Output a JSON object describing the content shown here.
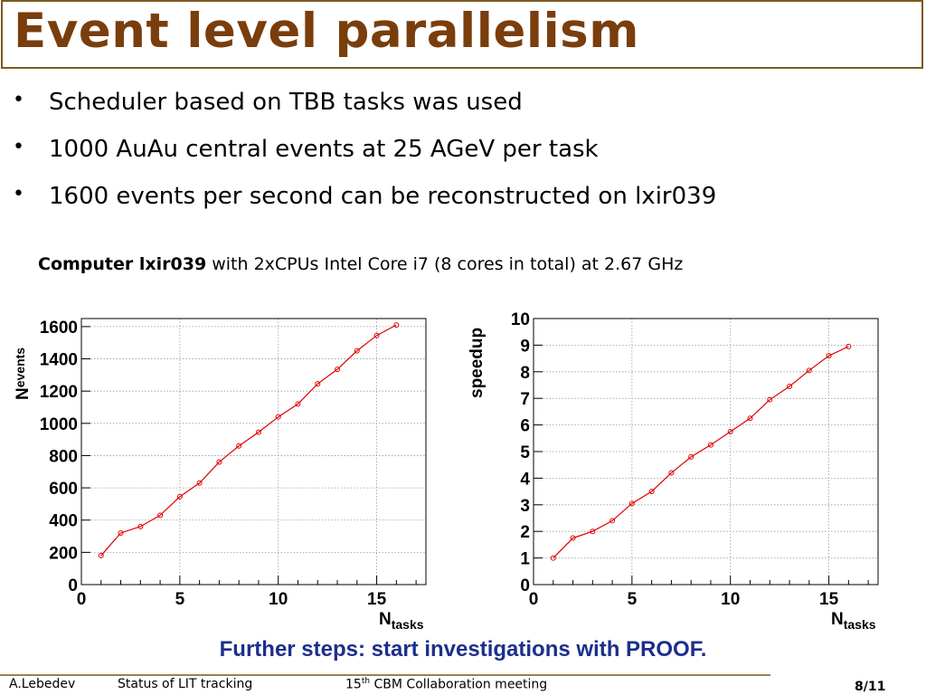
{
  "title": "Event level parallelism",
  "bullets": [
    "Scheduler based on TBB tasks was used",
    "1000 AuAu central events at 25 AGeV per task",
    "1600 events per second can be reconstructed on lxir039"
  ],
  "bullet_symbol": "•",
  "computer_bold": "Computer lxir039",
  "computer_rest": " with 2xCPUs Intel Core i7 (8 cores in total) at 2.67 GHz",
  "further": "Further steps: start investigations with PROOF.",
  "footer": {
    "author": "A.Lebedev",
    "talk": "Status of LIT tracking",
    "meeting_num": "15",
    "meeting_sup": "th",
    "meeting_rest": " CBM Collaboration meeting",
    "page": "8/11"
  },
  "colors": {
    "title": "#7a3d0c",
    "further": "#1c2f8c",
    "series": "#e00000",
    "grid": "#9a9a9a"
  },
  "chart_data": [
    {
      "type": "line",
      "ylabel": "N",
      "ylabel_sub": "events",
      "xlabel": "N",
      "xlabel_sub": "tasks",
      "xlim": [
        0,
        17.5
      ],
      "ylim": [
        0,
        1650
      ],
      "xticks": [
        0,
        5,
        10,
        15
      ],
      "yticks": [
        0,
        200,
        400,
        600,
        800,
        1000,
        1200,
        1400,
        1600
      ],
      "grid": true,
      "x": [
        1,
        2,
        3,
        4,
        5,
        6,
        7,
        8,
        9,
        10,
        11,
        12,
        13,
        14,
        15,
        16
      ],
      "values": [
        180,
        320,
        360,
        430,
        545,
        630,
        760,
        860,
        945,
        1040,
        1120,
        1245,
        1335,
        1450,
        1545,
        1610
      ]
    },
    {
      "type": "line",
      "ylabel": "speedup",
      "ylabel_sub": "",
      "xlabel": "N",
      "xlabel_sub": "tasks",
      "xlim": [
        0,
        17.5
      ],
      "ylim": [
        0,
        10
      ],
      "xticks": [
        0,
        5,
        10,
        15
      ],
      "yticks": [
        0,
        1,
        2,
        3,
        4,
        5,
        6,
        7,
        8,
        9,
        10
      ],
      "grid": true,
      "x": [
        1,
        2,
        3,
        4,
        5,
        6,
        7,
        8,
        9,
        10,
        11,
        12,
        13,
        14,
        15,
        16
      ],
      "values": [
        1.0,
        1.75,
        2.0,
        2.4,
        3.05,
        3.5,
        4.2,
        4.8,
        5.25,
        5.75,
        6.25,
        6.95,
        7.45,
        8.05,
        8.6,
        8.95
      ]
    }
  ]
}
